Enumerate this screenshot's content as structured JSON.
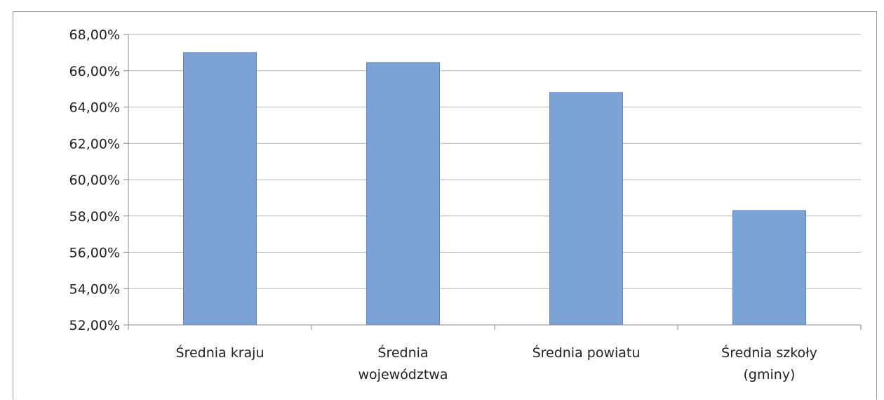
{
  "chart_data": {
    "type": "bar",
    "categories": [
      [
        "Średnia kraju"
      ],
      [
        "Średnia",
        "województwa"
      ],
      [
        "Średnia powiatu"
      ],
      [
        "Średnia szkoły",
        "(gminy)"
      ]
    ],
    "values": [
      67.0,
      66.45,
      64.8,
      58.3
    ],
    "ylim": [
      52,
      68
    ],
    "yticks": [
      "52,00%",
      "54,00%",
      "56,00%",
      "58,00%",
      "60,00%",
      "62,00%",
      "64,00%",
      "66,00%",
      "68,00%"
    ],
    "ytick_values": [
      52,
      54,
      56,
      58,
      60,
      62,
      64,
      66,
      68
    ],
    "grid": true,
    "bar_color": "#7ba3d6",
    "bar_edge_color": "#5f86bd",
    "grid_color": "#b8b8b8",
    "title": "",
    "xlabel": "",
    "ylabel": "",
    "legend": "none"
  }
}
